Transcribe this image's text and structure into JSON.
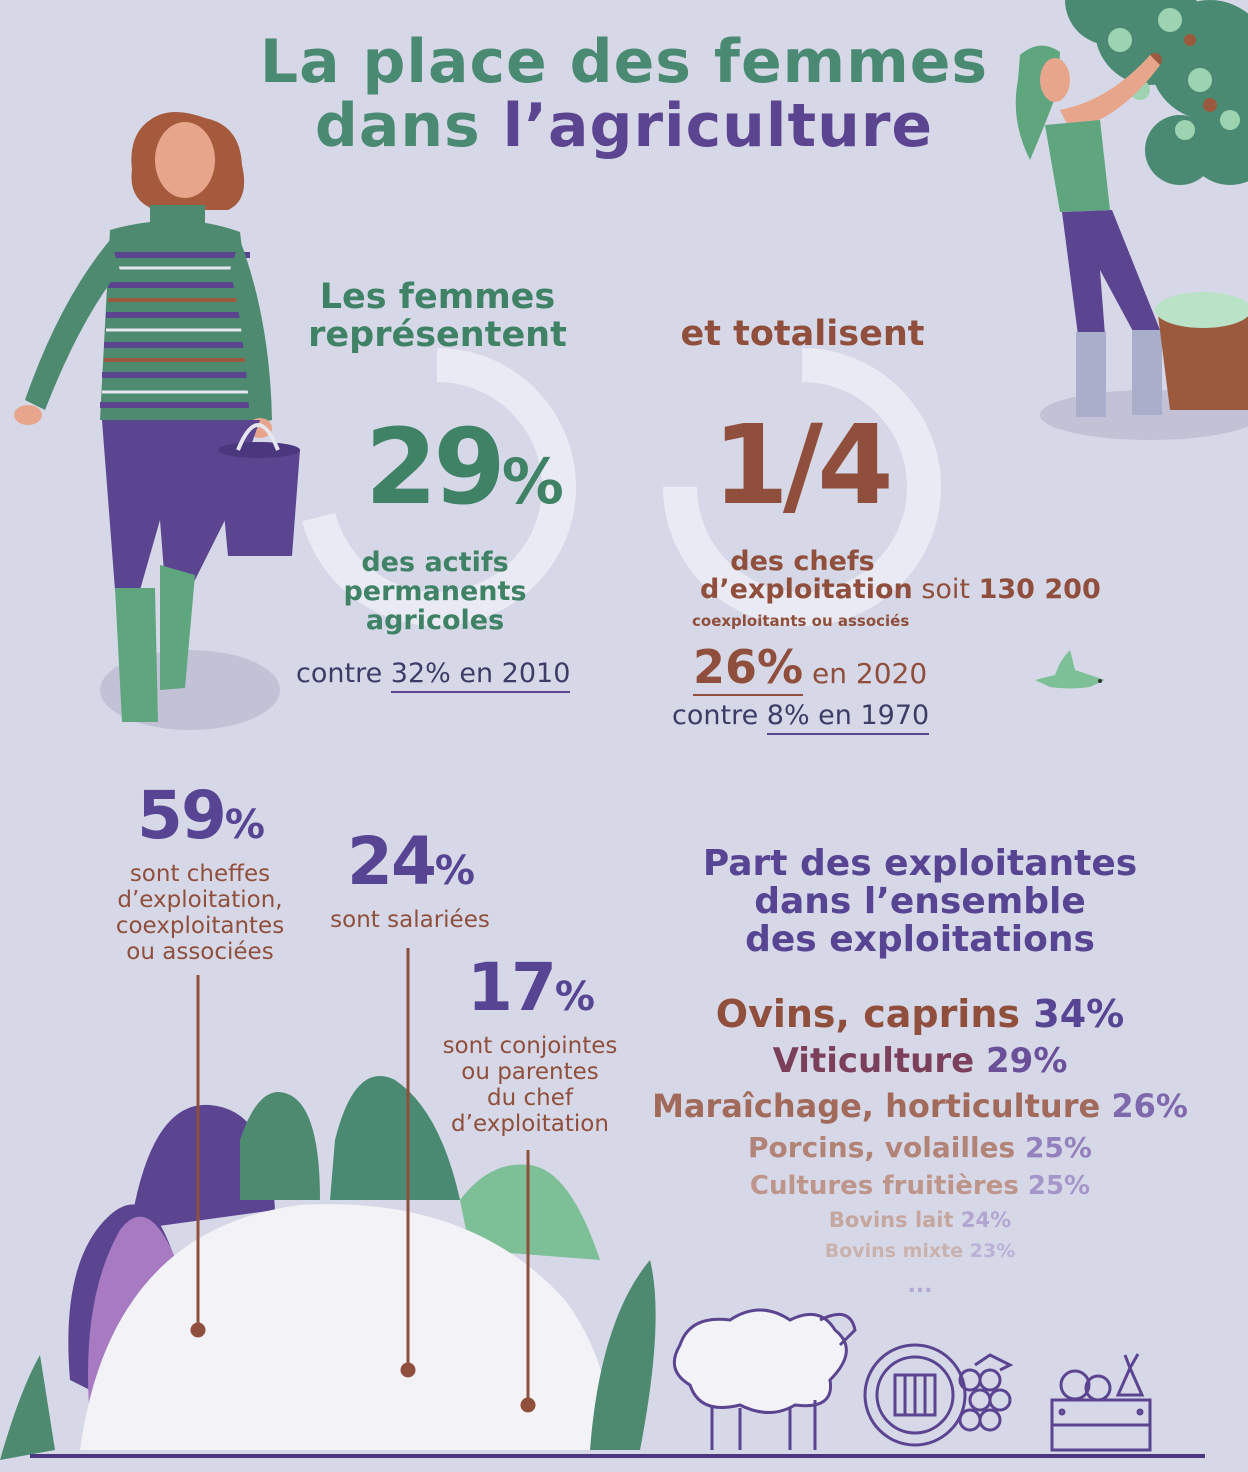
{
  "title": {
    "line1": "La place des femmes",
    "line2a": "dans ",
    "line2b": "l’agriculture"
  },
  "block1": {
    "heading_line1": "Les femmes",
    "heading_line2": "représentent",
    "big_value": "29",
    "percent": "%",
    "sub1": "des actifs",
    "sub2": "permanents",
    "sub3": "agricoles",
    "compare_prefix": "contre ",
    "compare_value": "32% en 2010",
    "ring_fraction": 0.29
  },
  "block2": {
    "heading": "et totalisent",
    "big_value": "1/4",
    "sub1": "des chefs",
    "sub2": "d’exploitation",
    "sub2_suffix": " soit ",
    "count": "130 200",
    "small": "coexploitants ou associés",
    "year_value": "26%",
    "year_suffix": " en 2020",
    "compare_prefix": "contre ",
    "compare_value": "8% en 1970",
    "ring_fraction": 0.25
  },
  "breakdown": [
    {
      "value": "59",
      "percent": "%",
      "lines": [
        "sont cheffes",
        "d’exploitation,",
        "coexploitantes",
        "ou associées"
      ]
    },
    {
      "value": "24",
      "percent": "%",
      "lines": [
        "sont salariées"
      ]
    },
    {
      "value": "17",
      "percent": "%",
      "lines": [
        "sont conjointes",
        "ou parentes",
        "du chef",
        "d’exploitation"
      ]
    }
  ],
  "part": {
    "heading": [
      "Part des exploitantes",
      "dans l’ensemble",
      "des exploitations"
    ],
    "items": [
      {
        "label": "Ovins, caprins",
        "value": "34%"
      },
      {
        "label": "Viticulture",
        "value": "29%"
      },
      {
        "label": "Maraîchage, horticulture",
        "value": "26%"
      },
      {
        "label": "Porcins, volailles",
        "value": "25%"
      },
      {
        "label": "Cultures fruitières",
        "value": "25%"
      },
      {
        "label": "Bovins lait",
        "value": "24%"
      },
      {
        "label": "Bovins mixte",
        "value": "23%"
      }
    ],
    "ellipsis": "..."
  },
  "icons": [
    "woman-with-bucket-illustration",
    "woman-picking-fruit-illustration",
    "bird-icon",
    "sheep-icon",
    "wine-barrel-grapes-icon",
    "vegetable-crate-icon"
  ],
  "colors": {
    "background": "#d6d8e7",
    "green": "#3f8266",
    "brown": "#8f4f3c",
    "purple": "#574493"
  }
}
